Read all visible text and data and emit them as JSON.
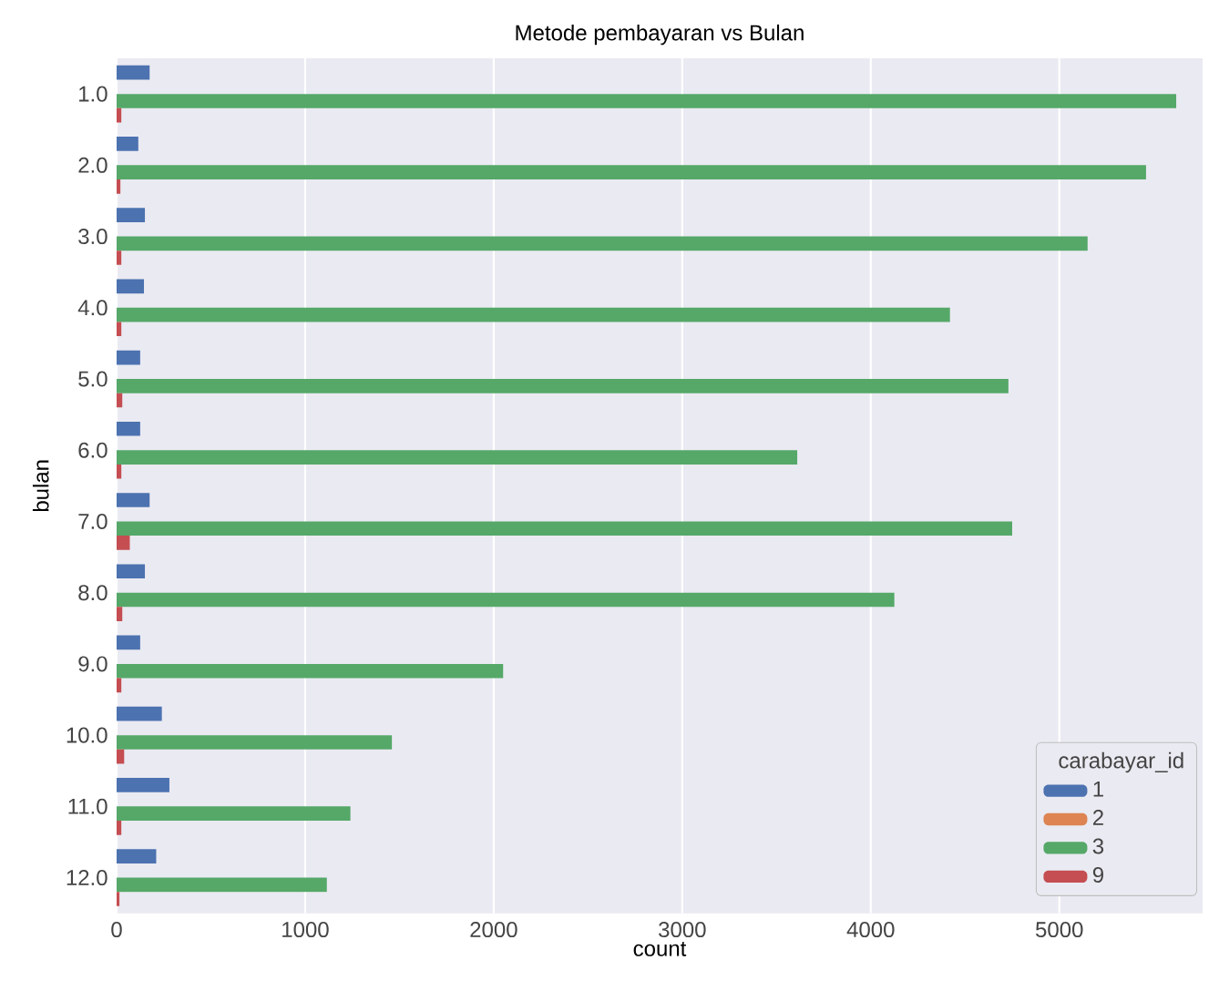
{
  "chart_data": {
    "type": "bar",
    "orientation": "horizontal",
    "title": "Metode pembayaran vs Bulan",
    "xlabel": "count",
    "ylabel": "bulan",
    "legend_title": "carabayar_id",
    "categories": [
      "1.0",
      "2.0",
      "3.0",
      "4.0",
      "5.0",
      "6.0",
      "7.0",
      "8.0",
      "9.0",
      "10.0",
      "11.0",
      "12.0"
    ],
    "series": [
      {
        "name": "1",
        "color": "#4c72b0",
        "values": [
          175,
          115,
          150,
          145,
          125,
          125,
          175,
          150,
          125,
          240,
          280,
          210
        ]
      },
      {
        "name": "2",
        "color": "#dd8452",
        "values": [
          null,
          null,
          null,
          null,
          null,
          null,
          null,
          null,
          null,
          null,
          null,
          null
        ]
      },
      {
        "name": "3",
        "color": "#55a868",
        "values": [
          5620,
          5460,
          5150,
          4420,
          4730,
          3610,
          4750,
          4125,
          2050,
          1460,
          1240,
          1115
        ]
      },
      {
        "name": "9",
        "color": "#c44e52",
        "values": [
          25,
          20,
          25,
          25,
          30,
          25,
          70,
          30,
          25,
          40,
          25,
          15
        ]
      }
    ],
    "xlim": [
      0,
      5760
    ],
    "xticks": [
      0,
      1000,
      2000,
      3000,
      4000,
      5000
    ],
    "grid": "x",
    "legend": "bottom right"
  }
}
